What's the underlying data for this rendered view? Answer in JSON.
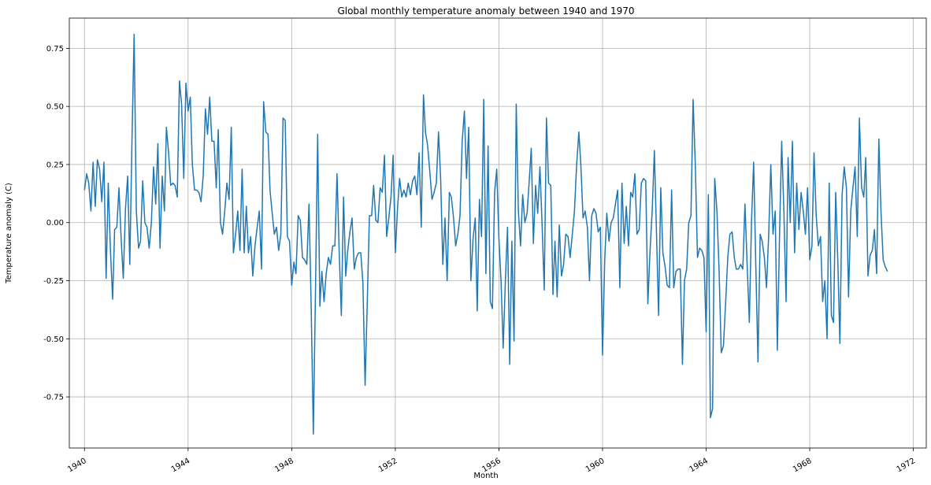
{
  "chart_data": {
    "type": "line",
    "title": "Global monthly temperature anomaly between 1940 and 1970",
    "xlabel": "Month",
    "ylabel": "Temperature anomaly (C)",
    "x_axis": "date",
    "xlim": [
      "1939-06-01",
      "1972-07-01"
    ],
    "ylim": [
      -0.97,
      0.88
    ],
    "grid": true,
    "x_ticks": [
      "1940",
      "1944",
      "1948",
      "1952",
      "1956",
      "1960",
      "1964",
      "1968",
      "1972"
    ],
    "y_ticks": [
      "-0.75",
      "-0.50",
      "-0.25",
      "0.00",
      "0.25",
      "0.50",
      "0.75"
    ],
    "series": [
      {
        "color": "#1f77b4",
        "start": "1940-01",
        "step": "month",
        "values": [
          0.14,
          0.21,
          0.17,
          0.05,
          0.26,
          0.07,
          0.27,
          0.23,
          0.09,
          0.26,
          -0.24,
          0.17,
          -0.12,
          -0.33,
          -0.03,
          -0.02,
          0.15,
          -0.07,
          -0.24,
          0.06,
          0.2,
          -0.18,
          0.36,
          0.81,
          0.05,
          -0.11,
          -0.08,
          0.18,
          0.0,
          -0.02,
          -0.11,
          0.0,
          0.24,
          0.08,
          0.34,
          -0.11,
          0.2,
          0.05,
          0.41,
          0.3,
          0.16,
          0.17,
          0.16,
          0.11,
          0.61,
          0.51,
          0.19,
          0.6,
          0.48,
          0.54,
          0.25,
          0.14,
          0.14,
          0.13,
          0.09,
          0.2,
          0.49,
          0.38,
          0.54,
          0.35,
          0.35,
          0.15,
          0.4,
          0.0,
          -0.05,
          0.05,
          0.17,
          0.1,
          0.41,
          -0.13,
          -0.05,
          0.05,
          -0.12,
          0.23,
          -0.13,
          0.07,
          -0.13,
          -0.06,
          -0.23,
          -0.1,
          -0.02,
          0.05,
          -0.2,
          0.52,
          0.39,
          0.38,
          0.14,
          0.04,
          -0.05,
          -0.02,
          -0.12,
          -0.05,
          0.45,
          0.44,
          -0.06,
          -0.08,
          -0.27,
          -0.17,
          -0.22,
          0.03,
          0.01,
          -0.15,
          -0.16,
          -0.18,
          0.08,
          -0.35,
          -0.91,
          -0.3,
          0.38,
          -0.36,
          -0.21,
          -0.34,
          -0.22,
          -0.15,
          -0.18,
          -0.1,
          -0.1,
          0.21,
          -0.13,
          -0.4,
          0.11,
          -0.23,
          -0.12,
          -0.04,
          0.02,
          -0.2,
          -0.15,
          -0.13,
          -0.13,
          -0.26,
          -0.7,
          -0.35,
          0.03,
          0.03,
          0.16,
          0.01,
          0.0,
          0.15,
          0.13,
          0.29,
          -0.06,
          0.02,
          0.11,
          0.29,
          -0.13,
          0.06,
          0.19,
          0.11,
          0.14,
          0.11,
          0.17,
          0.12,
          0.18,
          0.2,
          0.12,
          0.3,
          -0.02,
          0.55,
          0.39,
          0.33,
          0.22,
          0.1,
          0.13,
          0.17,
          0.39,
          0.19,
          -0.18,
          0.02,
          -0.25,
          0.13,
          0.11,
          0.02,
          -0.1,
          -0.05,
          0.03,
          0.35,
          0.48,
          0.19,
          0.41,
          -0.25,
          -0.07,
          0.02,
          -0.38,
          0.1,
          -0.06,
          0.53,
          -0.22,
          0.33,
          -0.34,
          -0.37,
          0.13,
          0.23,
          -0.07,
          -0.26,
          -0.54,
          -0.25,
          -0.02,
          -0.61,
          -0.08,
          -0.51,
          0.51,
          0.05,
          -0.1,
          0.12,
          0.0,
          0.04,
          0.17,
          0.32,
          -0.09,
          0.16,
          0.04,
          0.24,
          -0.01,
          -0.29,
          0.45,
          0.17,
          0.16,
          -0.31,
          -0.08,
          -0.32,
          -0.01,
          -0.23,
          -0.18,
          -0.05,
          -0.06,
          -0.15,
          -0.05,
          0.05,
          0.25,
          0.39,
          0.25,
          0.02,
          0.05,
          -0.02,
          -0.25,
          0.03,
          0.06,
          0.04,
          -0.04,
          -0.02,
          -0.57,
          -0.16,
          0.04,
          -0.08,
          0.0,
          0.02,
          0.08,
          0.14,
          -0.28,
          0.17,
          -0.09,
          0.07,
          -0.1,
          0.13,
          0.11,
          0.21,
          -0.05,
          -0.03,
          0.17,
          0.19,
          0.18,
          -0.35,
          -0.12,
          0.05,
          0.31,
          -0.06,
          -0.4,
          0.15,
          -0.13,
          -0.19,
          -0.27,
          -0.28,
          0.14,
          -0.28,
          -0.21,
          -0.2,
          -0.2,
          -0.61,
          -0.25,
          -0.2,
          0.0,
          0.03,
          0.53,
          0.25,
          -0.15,
          -0.11,
          -0.12,
          -0.15,
          -0.47,
          0.12,
          -0.84,
          -0.8,
          0.19,
          0.05,
          -0.2,
          -0.56,
          -0.53,
          -0.35,
          -0.15,
          -0.05,
          -0.04,
          -0.15,
          -0.2,
          -0.2,
          -0.18,
          -0.2,
          0.08,
          -0.18,
          -0.43,
          0.0,
          0.26,
          -0.18,
          -0.6,
          -0.05,
          -0.08,
          -0.15,
          -0.28,
          -0.05,
          0.25,
          -0.05,
          0.05,
          -0.55,
          -0.05,
          0.35,
          0.05,
          -0.34,
          0.28,
          0.0,
          0.35,
          -0.13,
          0.17,
          -0.03,
          0.13,
          0.05,
          -0.05,
          0.15,
          -0.16,
          -0.1,
          0.3,
          0.03,
          -0.1,
          -0.06,
          -0.34,
          -0.25,
          -0.5,
          0.17,
          -0.4,
          -0.43,
          0.13,
          -0.18,
          -0.52,
          0.12,
          0.24,
          0.15,
          -0.32,
          0.05,
          0.15,
          0.24,
          -0.06,
          0.45,
          0.15,
          0.11,
          0.28,
          -0.23,
          -0.14,
          -0.12,
          -0.03,
          -0.22,
          0.36,
          0.05,
          -0.16,
          -0.19,
          -0.21
        ]
      }
    ]
  }
}
